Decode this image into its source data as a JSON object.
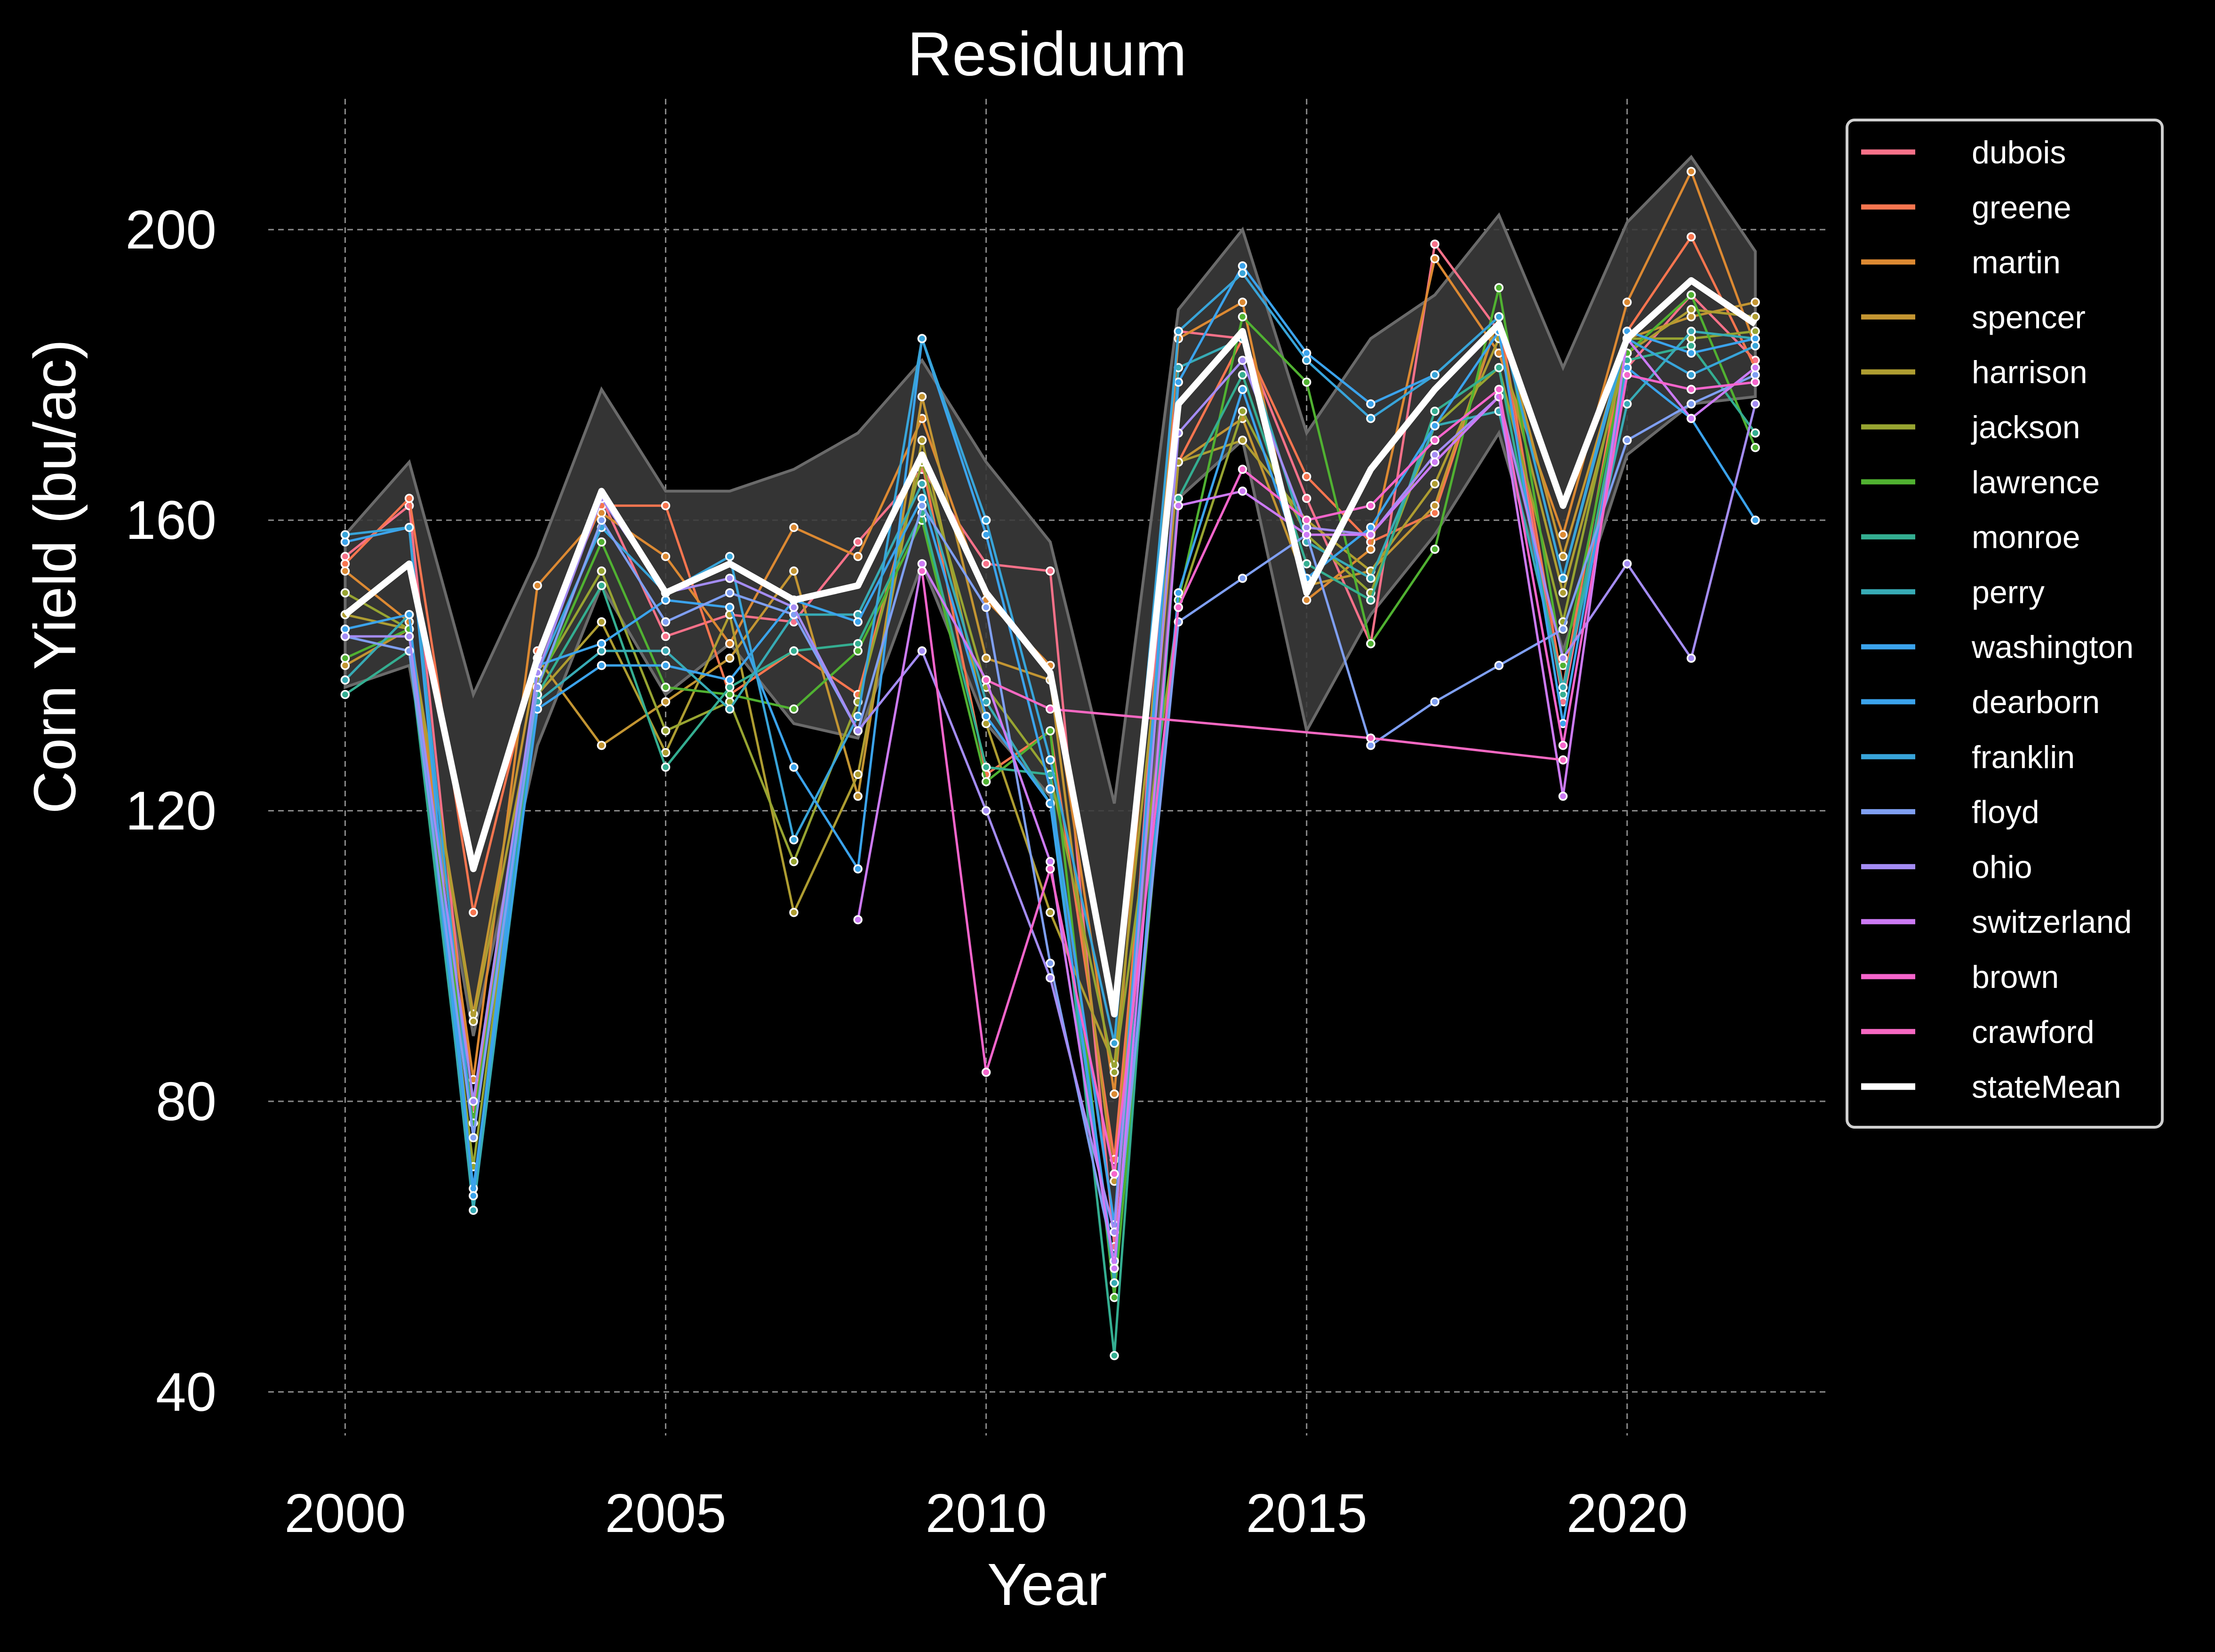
{
  "chart_data": {
    "type": "line",
    "title": "Residuum",
    "xlabel": "Year",
    "ylabel": "Corn Yield (bu/ac)",
    "xlim": [
      1998.8,
      2023.1
    ],
    "ylim": [
      34,
      218
    ],
    "xticks": [
      2000,
      2005,
      2010,
      2015,
      2020
    ],
    "yticks": [
      40,
      80,
      120,
      160,
      200
    ],
    "grid": true,
    "legend_position": "upper-right-outside",
    "band": {
      "x": [
        2000,
        2001,
        2002,
        2003,
        2004,
        2005,
        2006,
        2007,
        2008,
        2009,
        2010,
        2011,
        2012,
        2013,
        2014,
        2015,
        2016,
        2017,
        2018,
        2019,
        2020,
        2021,
        2022
      ],
      "upper": [
        158,
        168,
        136,
        155,
        178,
        164,
        164,
        167,
        172,
        182,
        168,
        157,
        121,
        189,
        200,
        172,
        185,
        191,
        202,
        181,
        201,
        210,
        197
      ],
      "lower": [
        137,
        140,
        89,
        129,
        151,
        136,
        143,
        132,
        130,
        154,
        132,
        122,
        63,
        163,
        171,
        131,
        147,
        158,
        172,
        142,
        169,
        176,
        177
      ]
    },
    "series": [
      {
        "name": "dubois",
        "color": "#f77189",
        "x": [
          2000,
          2001,
          2002,
          2003,
          2004,
          2005,
          2006,
          2007,
          2008,
          2009,
          2010,
          2011,
          2012,
          2013,
          2014,
          2015,
          2016,
          2017,
          2018,
          2019,
          2020,
          2021,
          2022
        ],
        "y": [
          155,
          162,
          79,
          139,
          163,
          144,
          147,
          146,
          157,
          167,
          154,
          153,
          60,
          186,
          185,
          163,
          143,
          198,
          186,
          135,
          181,
          191,
          182
        ]
      },
      {
        "name": "greene",
        "color": "#f7754f",
        "x": [
          2000,
          2001,
          2002,
          2003,
          2004,
          2005,
          2006,
          2007,
          2008,
          2009,
          2010,
          2011,
          2012,
          2013,
          2014,
          2015,
          2016,
          2017,
          2018,
          2019,
          2020,
          2021,
          2022
        ],
        "y": [
          154,
          163,
          106,
          142,
          162,
          162,
          136,
          142,
          136,
          168,
          125,
          131,
          72,
          168,
          185,
          166,
          157,
          161,
          188,
          137,
          186,
          199,
          181
        ]
      },
      {
        "name": "martin",
        "color": "#dc8932",
        "x": [
          2000,
          2001,
          2002,
          2003,
          2004,
          2005,
          2006,
          2007,
          2008,
          2009,
          2010,
          2011,
          2012,
          2013,
          2014,
          2015,
          2016,
          2017,
          2018,
          2019,
          2020,
          2021,
          2022
        ],
        "y": [
          153,
          146,
          83,
          151,
          161,
          155,
          143,
          159,
          155,
          174,
          149,
          140,
          81,
          185,
          190,
          149,
          156,
          196,
          183,
          158,
          190,
          208,
          184
        ]
      },
      {
        "name": "spencer",
        "color": "#c39532",
        "x": [
          2000,
          2001,
          2002,
          2003,
          2004,
          2005,
          2006,
          2007,
          2008,
          2009,
          2010,
          2011,
          2012,
          2013,
          2014,
          2015,
          2016,
          2017,
          2018,
          2019,
          2020,
          2021,
          2022
        ],
        "y": [
          140,
          145,
          92,
          141,
          129,
          135,
          141,
          153,
          122,
          177,
          141,
          138,
          69,
          168,
          174,
          151,
          153,
          162,
          188,
          155,
          185,
          188,
          190
        ]
      },
      {
        "name": "harrison",
        "color": "#ae9d31",
        "x": [
          2000,
          2001,
          2002,
          2003,
          2004,
          2005,
          2006,
          2007,
          2008,
          2009,
          2010,
          2011,
          2012,
          2013,
          2014,
          2015,
          2016,
          2017,
          2018,
          2019,
          2020,
          2021,
          2022
        ],
        "y": [
          147,
          145,
          91,
          136,
          146,
          128,
          147,
          106,
          125,
          171,
          132,
          106,
          85,
          168,
          171,
          160,
          153,
          165,
          185,
          150,
          183,
          189,
          188
        ]
      },
      {
        "name": "jackson",
        "color": "#97a431",
        "x": [
          2000,
          2001,
          2002,
          2003,
          2004,
          2005,
          2006,
          2007,
          2008,
          2009,
          2010,
          2011,
          2012,
          2013,
          2014,
          2015,
          2016,
          2017,
          2018,
          2019,
          2020,
          2021,
          2022
        ],
        "y": [
          150,
          145,
          71,
          138,
          153,
          131,
          135,
          113,
          135,
          168,
          137,
          125,
          84,
          148,
          175,
          158,
          150,
          173,
          181,
          146,
          185,
          185,
          186
        ]
      },
      {
        "name": "lawrence",
        "color": "#50b131",
        "x": [
          2000,
          2001,
          2002,
          2003,
          2004,
          2005,
          2006,
          2007,
          2008,
          2009,
          2010,
          2011,
          2012,
          2013,
          2014,
          2015,
          2016,
          2017,
          2018,
          2019,
          2020,
          2021,
          2022
        ],
        "y": [
          141,
          145,
          77,
          137,
          157,
          137,
          136,
          134,
          142,
          160,
          124,
          131,
          53,
          149,
          188,
          179,
          143,
          156,
          192,
          140,
          183,
          191,
          170
        ]
      },
      {
        "name": "monroe",
        "color": "#34ae91",
        "x": [
          2000,
          2001,
          2002,
          2003,
          2004,
          2005,
          2006,
          2007,
          2008,
          2009,
          2010,
          2011,
          2012,
          2013,
          2014,
          2015,
          2016,
          2017,
          2018,
          2019,
          2020,
          2021,
          2022
        ],
        "y": [
          136,
          142,
          67,
          136,
          151,
          126,
          137,
          142,
          143,
          161,
          126,
          125,
          45,
          163,
          180,
          154,
          149,
          175,
          181,
          136,
          182,
          184,
          172
        ]
      },
      {
        "name": "perry",
        "color": "#37abb5",
        "x": [
          2000,
          2001,
          2002,
          2003,
          2004,
          2005,
          2006,
          2007,
          2008,
          2009,
          2010,
          2011,
          2012,
          2013,
          2014,
          2015,
          2016,
          2017,
          2018,
          2019,
          2020,
          2021,
          2022
        ],
        "y": [
          138,
          147,
          65,
          135,
          142,
          142,
          134,
          147,
          147,
          165,
          135,
          121,
          55,
          181,
          185,
          157,
          152,
          173,
          175,
          137,
          176,
          186,
          185
        ]
      },
      {
        "name": "washington",
        "color": "#3ba3ec",
        "x": [
          2000,
          2001,
          2002,
          2003,
          2004,
          2005,
          2006,
          2007,
          2008,
          2009,
          2010,
          2011,
          2012,
          2013,
          2014,
          2015,
          2016,
          2017,
          2018,
          2019,
          2020,
          2021,
          2022
        ],
        "y": [
          145,
          147,
          68,
          134,
          140,
          140,
          138,
          149,
          146,
          163,
          133,
          121,
          57,
          150,
          178,
          152,
          159,
          173,
          186,
          132,
          181,
          174,
          160
        ]
      },
      {
        "name": "dearborn",
        "color": "#3ba3ec",
        "x": [
          2000,
          2001,
          2002,
          2003,
          2004,
          2005,
          2006,
          2007,
          2008,
          2009,
          2010,
          2011,
          2012,
          2013,
          2014,
          2015,
          2016,
          2017,
          2018,
          2019,
          2020,
          2021,
          2022
        ],
        "y": [
          157,
          159,
          67,
          140,
          143,
          149,
          148,
          126,
          112,
          185,
          158,
          123,
          63,
          179,
          195,
          183,
          176,
          180,
          188,
          152,
          186,
          183,
          185
        ]
      },
      {
        "name": "franklin",
        "color": "#38a4d9",
        "x": [
          2000,
          2001,
          2002,
          2003,
          2004,
          2005,
          2006,
          2007,
          2008,
          2009,
          2010,
          2011,
          2012,
          2013,
          2014,
          2015,
          2016,
          2017,
          2018,
          2019,
          2020,
          2021,
          2022
        ],
        "y": [
          158,
          159,
          75,
          139,
          159,
          150,
          155,
          116,
          133,
          185,
          160,
          127,
          88,
          186,
          194,
          182,
          174,
          180,
          188,
          152,
          185,
          180,
          184
        ]
      },
      {
        "name": "floyd",
        "color": "#7f9ff2",
        "x": [
          2000,
          2001,
          2002,
          2003,
          2004,
          2005,
          2006,
          2007,
          2008,
          2009,
          2010,
          2011,
          2012,
          2013,
          2014,
          2015,
          2016,
          2017,
          2018,
          2019,
          2020,
          2021,
          2022
        ],
        "y": [
          144,
          142,
          75,
          137,
          160,
          146,
          150,
          147,
          131,
          162,
          148,
          99,
          58,
          146,
          152,
          158,
          129,
          135,
          140,
          145,
          171,
          176,
          180
        ]
      },
      {
        "name": "ohio",
        "color": "#a48cf4",
        "x": [
          2000,
          2001,
          2002,
          2003,
          2004,
          2005,
          2006,
          2007,
          2008,
          2009,
          2010,
          2011,
          2012,
          2013,
          2014,
          2015,
          2016,
          2017,
          2018,
          2019,
          2020,
          2021,
          2022
        ],
        "y": [
          144,
          144,
          80,
          139,
          163,
          150,
          152,
          148,
          131,
          142,
          120,
          97,
          62,
          172,
          182,
          159,
          158,
          169,
          177,
          141,
          154,
          141,
          176
        ]
      },
      {
        "name": "switzerland",
        "color": "#cc7af4",
        "x": [
          2008,
          2009,
          2010,
          2011,
          2012,
          2013,
          2014,
          2015,
          2016,
          2017,
          2018,
          2019,
          2020,
          2021,
          2022
        ],
        "y": [
          105,
          154,
          138,
          113,
          57,
          162,
          164,
          158,
          158,
          168,
          177,
          122,
          185,
          174,
          181
        ]
      },
      {
        "name": "brown",
        "color": "#f565cc",
        "x": [
          2009,
          2010,
          2011,
          2012,
          2013,
          2014,
          2015,
          2016,
          2017,
          2018,
          2019,
          2020,
          2021,
          2022
        ],
        "y": [
          153,
          84,
          112,
          70,
          148,
          167,
          160,
          162,
          171,
          178,
          129,
          180,
          178,
          179
        ]
      },
      {
        "name": "crawford",
        "color": "#f668c2",
        "x": [
          2010,
          2011,
          2016,
          2019
        ],
        "y": [
          138,
          134,
          130,
          127
        ]
      },
      {
        "name": "stateMean",
        "color": "#ffffff",
        "x": [
          2000,
          2001,
          2002,
          2003,
          2004,
          2005,
          2006,
          2007,
          2008,
          2009,
          2010,
          2011,
          2012,
          2013,
          2014,
          2015,
          2016,
          2017,
          2018,
          2019,
          2020,
          2021,
          2022
        ],
        "y": [
          147,
          154,
          112,
          141,
          164,
          150,
          154,
          149,
          151,
          169,
          150,
          139,
          92,
          176,
          186,
          150,
          167,
          178,
          187,
          162,
          185,
          193,
          187
        ]
      }
    ]
  }
}
